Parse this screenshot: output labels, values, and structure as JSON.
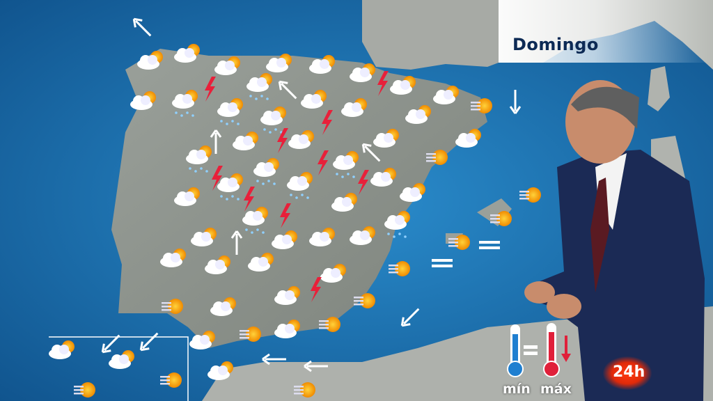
{
  "broadcast": {
    "day_label": "Domingo",
    "channel_logo": "24h",
    "legend": {
      "min_label": "mín",
      "max_label": "máx",
      "min_trend": "equal",
      "max_trend": "down"
    }
  },
  "map": {
    "region": "Iberian Peninsula, Balearic and Canary Islands",
    "icon_types": [
      "cloud-sun-icon",
      "storm-lightning-icon",
      "rain-cloud-icon",
      "sun-haze-icon",
      "wind-arrow-icon",
      "fog-icon"
    ],
    "colors": {
      "sea": "#1a6aa8",
      "land": "#8a8f88",
      "lightning": "#e8203a",
      "thermo_min": "#1f7fd0",
      "thermo_max": "#e0203a"
    }
  }
}
